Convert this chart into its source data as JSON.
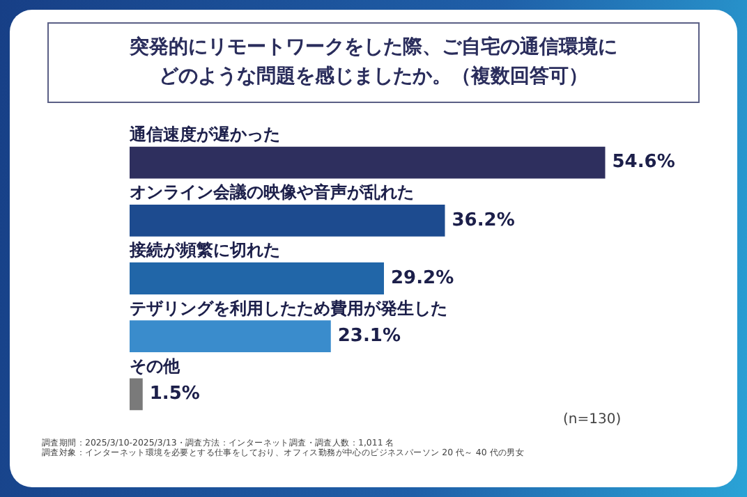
{
  "chart_data": {
    "type": "bar",
    "orientation": "horizontal",
    "title": "突発的にリモートワークをした際、ご自宅の通信環境にどのような問題を感じましたか。（複数回答可）",
    "categories": [
      "通信速度が遅かった",
      "オンライン会議の映像や音声が乱れた",
      "接続が頻繁に切れた",
      "テザリングを利用したため費用が発生した",
      "その他"
    ],
    "values": [
      54.6,
      36.2,
      29.2,
      23.1,
      1.5
    ],
    "colors": [
      "#2e2f5e",
      "#1d4b8f",
      "#2166a8",
      "#3a8ccc",
      "#7a7a7a"
    ],
    "value_labels": [
      "54.6%",
      "36.2%",
      "29.2%",
      "23.1%",
      "1.5%"
    ],
    "annotations": [
      "(n=130)",
      "調査期間：2025/3/10-2025/3/13・調査方法：インターネット調査・調査人数：1,011 名",
      "調査対象：インターネット環境を必要とする仕事をしており、オフィス勤務が中心のビジネスパーソン 20 代～ 40 代の男女"
    ]
  }
}
